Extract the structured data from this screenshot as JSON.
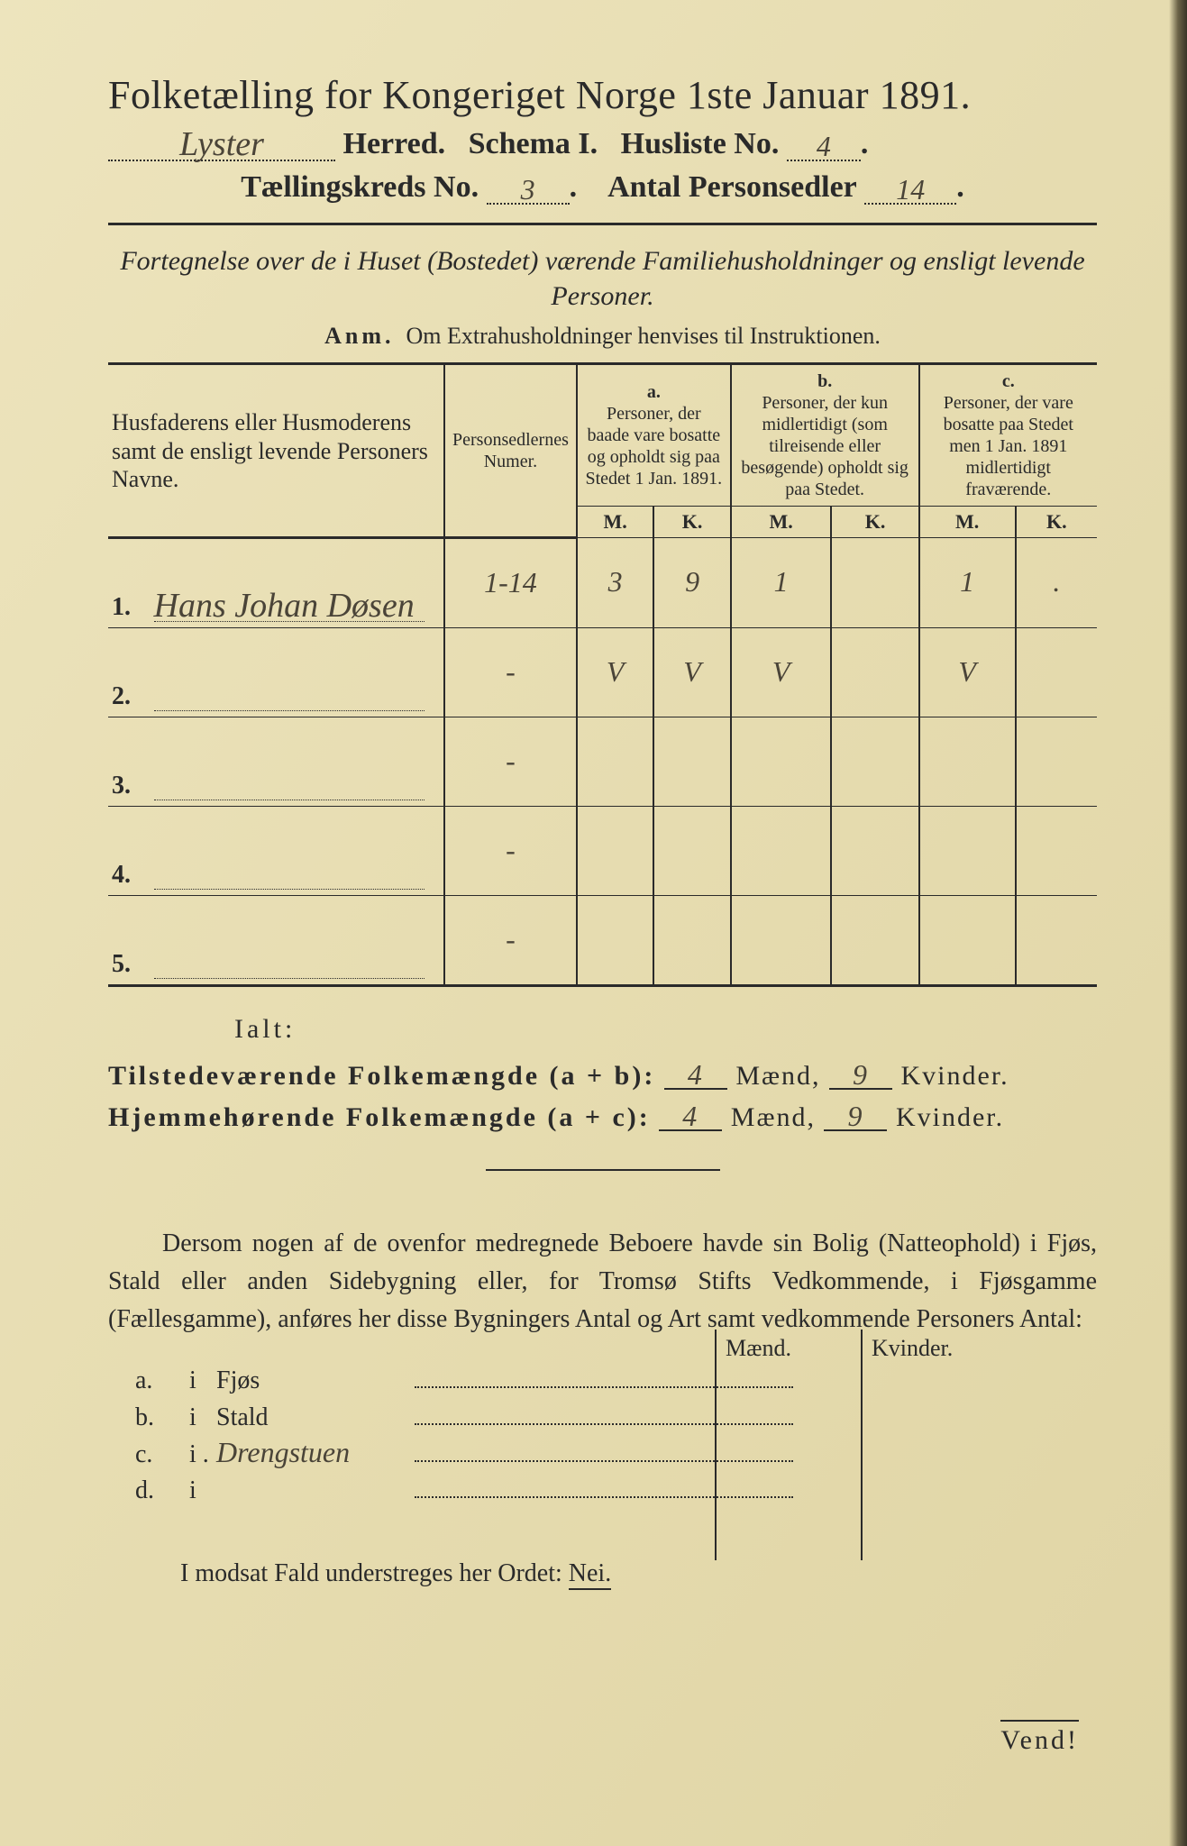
{
  "title": {
    "prefix": "Folketælling for Kongeriget Norge",
    "date": "1ste Januar 1891."
  },
  "header": {
    "herred_value": "Lyster",
    "herred_label": "Herred.",
    "schema_label": "Schema I.",
    "husliste_label": "Husliste No.",
    "husliste_value": "4",
    "kreds_label": "Tællingskreds No.",
    "kreds_value": "3",
    "antal_label": "Antal Personsedler",
    "antal_value": "14"
  },
  "subtitle": "Fortegnelse over de i Huset (Bostedet) værende Familiehusholdninger og ensligt levende Personer.",
  "anm_label": "Anm.",
  "anm_text": "Om Extrahusholdninger henvises til Instruktionen.",
  "columns": {
    "name": "Husfaderens eller Husmoderens samt de ensligt levende Personers Navne.",
    "num": "Personsedlernes Numer.",
    "a_label": "a.",
    "a_text": "Personer, der baade vare bosatte og opholdt sig paa Stedet 1 Jan. 1891.",
    "b_label": "b.",
    "b_text": "Personer, der kun midlertidigt (som tilreisende eller besøgende) opholdt sig paa Stedet.",
    "c_label": "c.",
    "c_text": "Personer, der vare bosatte paa Stedet men 1 Jan. 1891 midlertidigt fraværende.",
    "M": "M.",
    "K": "K."
  },
  "rows": [
    {
      "n": "1.",
      "name": "Hans Johan Døsen",
      "num": "1-14",
      "aM": "3",
      "aK": "9",
      "bM": "1",
      "bK": "",
      "cM": "1",
      "cK": "."
    },
    {
      "n": "2.",
      "name": "",
      "num": "-",
      "aM": "V",
      "aK": "V",
      "bM": "V",
      "bK": "",
      "cM": "V",
      "cK": ""
    },
    {
      "n": "3.",
      "name": "",
      "num": "-",
      "aM": "",
      "aK": "",
      "bM": "",
      "bK": "",
      "cM": "",
      "cK": ""
    },
    {
      "n": "4.",
      "name": "",
      "num": "-",
      "aM": "",
      "aK": "",
      "bM": "",
      "bK": "",
      "cM": "",
      "cK": ""
    },
    {
      "n": "5.",
      "name": "",
      "num": "-",
      "aM": "",
      "aK": "",
      "bM": "",
      "bK": "",
      "cM": "",
      "cK": ""
    }
  ],
  "totals": {
    "ialt": "Ialt:",
    "row1_label": "Tilstedeværende Folkemængde (a + b):",
    "row2_label": "Hjemmehørende Folkemængde (a + c):",
    "maend": "Mænd,",
    "kvinder": "Kvinder.",
    "r1_m": "4",
    "r1_k": "9",
    "r2_m": "4",
    "r2_k": "9"
  },
  "paragraph": "Dersom nogen af de ovenfor medregnede Beboere havde sin Bolig (Natteophold) i Fjøs, Stald eller anden Sidebygning eller, for Tromsø Stifts Vedkommende, i Fjøsgamme (Fællesgamme), anføres her disse Bygningers Antal og Art samt vedkommende Personers Antal:",
  "mk_labels": {
    "m": "Mænd.",
    "k": "Kvinder."
  },
  "buildings": [
    {
      "tag": "a.",
      "i": "i",
      "place": "Fjøs",
      "hw": ""
    },
    {
      "tag": "b.",
      "i": "i",
      "place": "Stald",
      "hw": ""
    },
    {
      "tag": "c.",
      "i": "i .",
      "place": "",
      "hw": "Drengstuen"
    },
    {
      "tag": "d.",
      "i": "i",
      "place": "",
      "hw": ""
    }
  ],
  "nei_line": "I modsat Fald understreges her Ordet:",
  "nei": "Nei.",
  "vend": "Vend!",
  "colors": {
    "paper": "#e8dfb8",
    "ink": "#2a2a2a",
    "handwriting": "#4a4438"
  }
}
